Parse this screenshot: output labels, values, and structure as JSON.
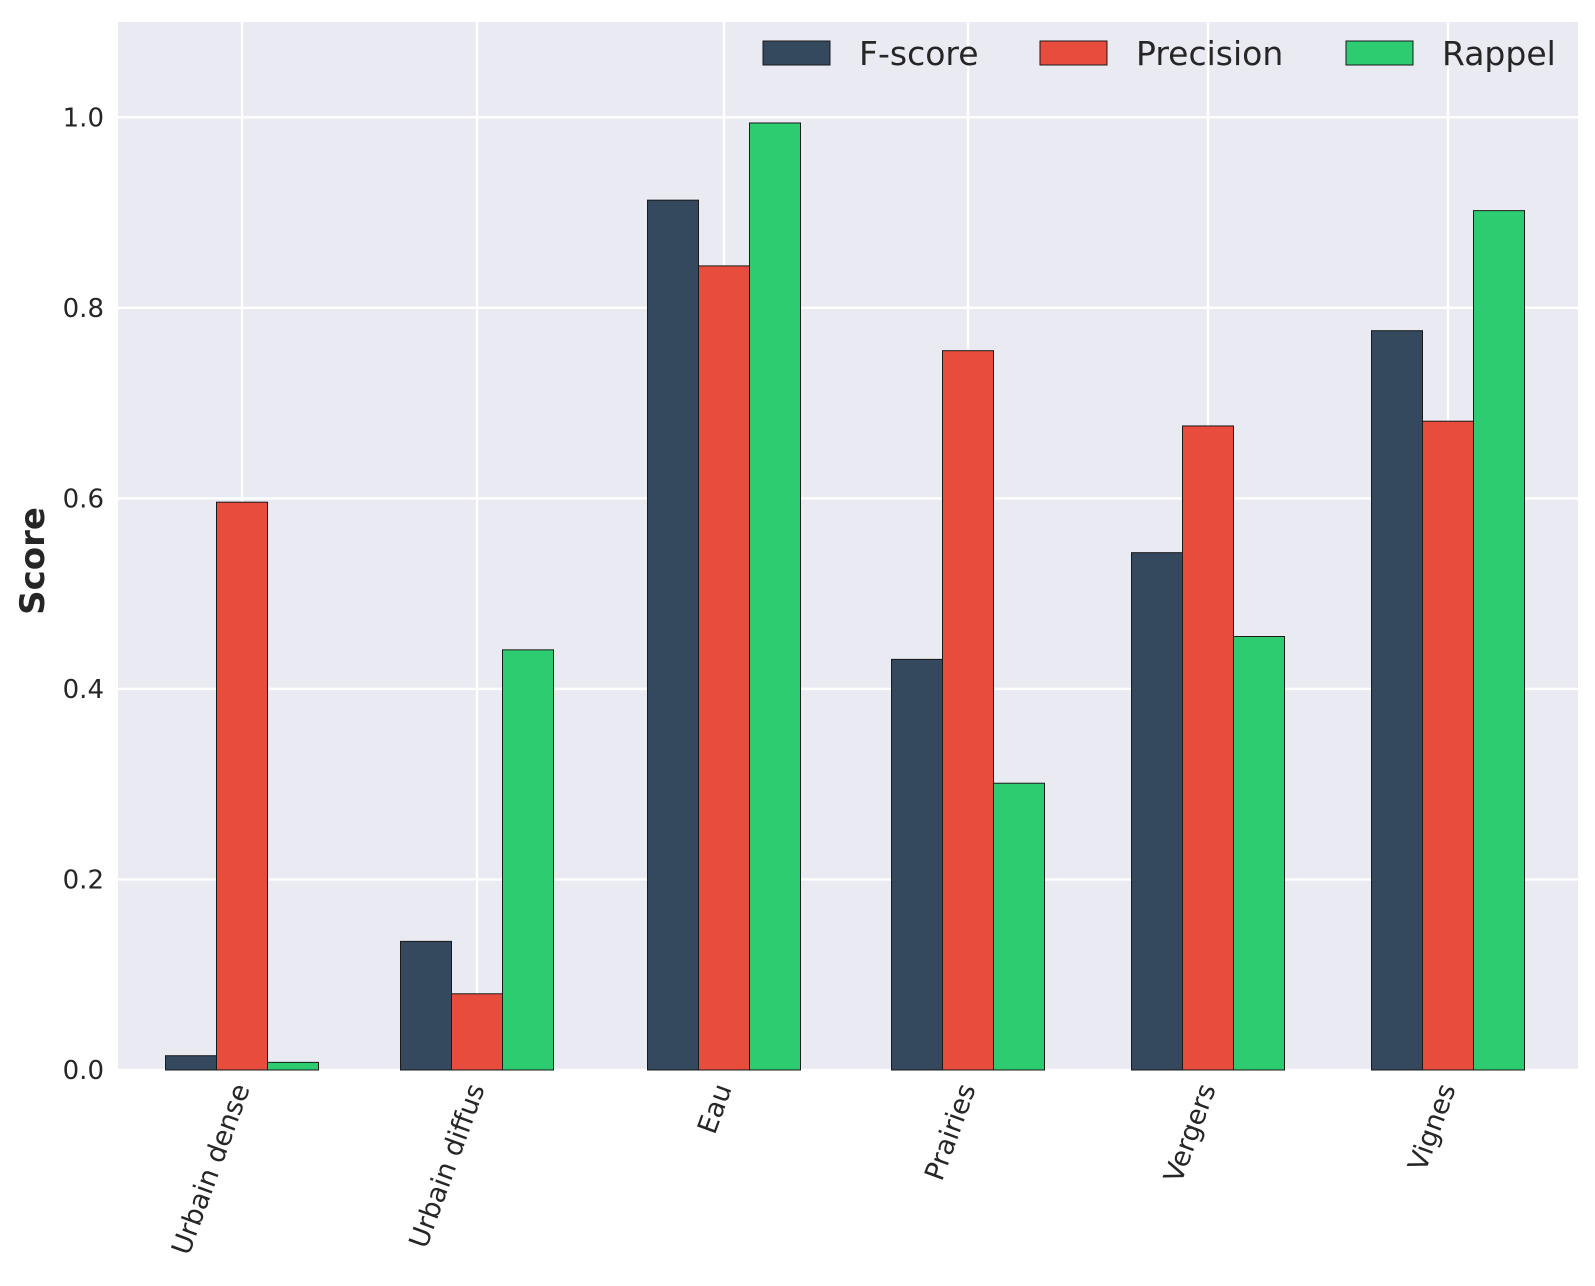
{
  "chart_data": {
    "type": "bar",
    "title": "",
    "xlabel": "",
    "ylabel": "Score",
    "ylim": [
      0,
      1.1
    ],
    "yticks": [
      "0.0",
      "0.2",
      "0.4",
      "0.6",
      "0.8",
      "1.0"
    ],
    "categories": [
      "Urbain dense",
      "Urbain diffus",
      "Eau",
      "Prairies",
      "Vergers",
      "Vignes"
    ],
    "series": [
      {
        "name": "F-score",
        "color": "#34495e",
        "values": [
          0.015,
          0.135,
          0.913,
          0.431,
          0.543,
          0.776
        ]
      },
      {
        "name": "Precision",
        "color": "#e74c3c",
        "values": [
          0.596,
          0.08,
          0.844,
          0.755,
          0.676,
          0.681
        ]
      },
      {
        "name": "Rappel",
        "color": "#2ecc71",
        "values": [
          0.008,
          0.441,
          0.994,
          0.301,
          0.455,
          0.902
        ]
      }
    ],
    "grid": true,
    "legend_position": "top-right",
    "background_color": "#eaeaf2"
  }
}
